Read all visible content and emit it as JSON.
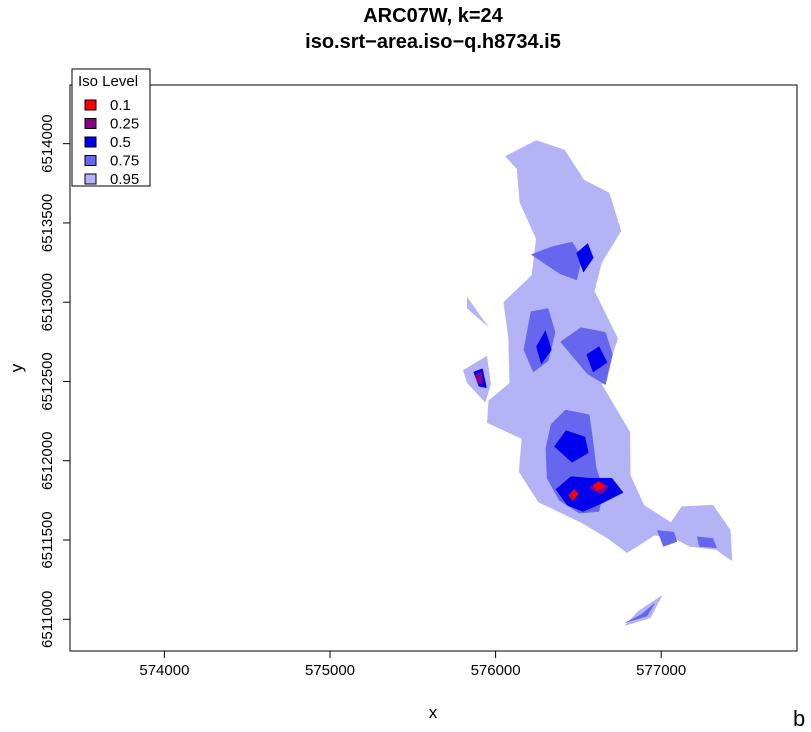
{
  "chart_data": {
    "type": "area",
    "title": "ARC07W, k=24",
    "subtitle": "iso.srt−area.iso−q.h8734.i5",
    "xlabel": "x",
    "ylabel": "y",
    "xlim": [
      573430,
      577820
    ],
    "ylim": [
      6510800,
      6514370
    ],
    "x_ticks": [
      574000,
      575000,
      576000,
      577000
    ],
    "y_ticks": [
      6511000,
      6511500,
      6512000,
      6512500,
      6513000,
      6513500,
      6514000
    ],
    "y_tick_labels": [
      "6511000",
      "6511500",
      "6512000",
      "6512500",
      "6513000",
      "6513500",
      "6514000"
    ],
    "x_tick_labels": [
      "574000",
      "575000",
      "576000",
      "577000"
    ],
    "grid": false,
    "legend": {
      "title": "Iso Level",
      "position": "top-left",
      "entries": [
        {
          "label": "0.1",
          "color": "#ff0000"
        },
        {
          "label": "0.25",
          "color": "#8b008b"
        },
        {
          "label": "0.5",
          "color": "#0000ee"
        },
        {
          "label": "0.75",
          "color": "#6666ee"
        },
        {
          "label": "0.95",
          "color": "#b3b3f5"
        }
      ]
    },
    "series": [
      {
        "name": "0.95",
        "color": "#b3b3f5",
        "polygons": [
          [
            [
              576059,
              6513920
            ],
            [
              576245,
              6514020
            ],
            [
              576416,
              6513960
            ],
            [
              576534,
              6513770
            ],
            [
              576685,
              6513690
            ],
            [
              576757,
              6513450
            ],
            [
              576640,
              6513250
            ],
            [
              576596,
              6513070
            ],
            [
              576738,
              6512770
            ],
            [
              576641,
              6512480
            ],
            [
              576811,
              6512180
            ],
            [
              576813,
              6511910
            ],
            [
              576895,
              6511720
            ],
            [
              577059,
              6511610
            ],
            [
              577124,
              6511710
            ],
            [
              577313,
              6511720
            ],
            [
              577418,
              6511560
            ],
            [
              577427,
              6511370
            ],
            [
              577330,
              6511440
            ],
            [
              577172,
              6511460
            ],
            [
              577062,
              6511520
            ],
            [
              576959,
              6511530
            ],
            [
              576794,
              6511420
            ],
            [
              576679,
              6511510
            ],
            [
              576518,
              6511610
            ],
            [
              576259,
              6511740
            ],
            [
              576142,
              6511930
            ],
            [
              576159,
              6512140
            ],
            [
              575949,
              6512240
            ],
            [
              575959,
              6512380
            ],
            [
              576085,
              6512490
            ],
            [
              576078,
              6512780
            ],
            [
              576049,
              6513000
            ],
            [
              576219,
              6513170
            ],
            [
              576246,
              6513400
            ],
            [
              576146,
              6513630
            ],
            [
              576130,
              6513840
            ],
            [
              576059,
              6513920
            ]
          ],
          [
            [
              576124,
              6512880
            ],
            [
              576202,
              6512990
            ],
            [
              576344,
              6512880
            ],
            [
              576419,
              6512600
            ],
            [
              576444,
              6512330
            ],
            [
              576345,
              6512270
            ],
            [
              576223,
              6512350
            ],
            [
              576200,
              6512540
            ],
            [
              576119,
              6512700
            ],
            [
              576124,
              6512880
            ]
          ],
          [
            [
              575805,
              6512570
            ],
            [
              575947,
              6512660
            ],
            [
              575970,
              6512480
            ],
            [
              575937,
              6512370
            ],
            [
              575830,
              6512490
            ],
            [
              575805,
              6512570
            ]
          ],
          [
            [
              575829,
              6512960
            ],
            [
              575952,
              6512850
            ],
            [
              575902,
              6512920
            ],
            [
              575829,
              6513030
            ],
            [
              575829,
              6512960
            ]
          ],
          [
            [
              576780,
              6510960
            ],
            [
              576935,
              6511010
            ],
            [
              577005,
              6511150
            ],
            [
              576860,
              6511050
            ],
            [
              576780,
              6510960
            ]
          ]
        ]
      },
      {
        "name": "0.75",
        "color": "#6666ee",
        "polygons": [
          [
            [
              576216,
              6513300
            ],
            [
              576341,
              6513350
            ],
            [
              576462,
              6513380
            ],
            [
              576522,
              6513280
            ],
            [
              576490,
              6513140
            ],
            [
              576388,
              6513180
            ],
            [
              576216,
              6513300
            ]
          ],
          [
            [
              576214,
              6512940
            ],
            [
              576317,
              6512960
            ],
            [
              576359,
              6512810
            ],
            [
              576317,
              6512630
            ],
            [
              576228,
              6512560
            ],
            [
              576170,
              6512700
            ],
            [
              576214,
              6512940
            ]
          ],
          [
            [
              576392,
              6512750
            ],
            [
              576515,
              6512840
            ],
            [
              576663,
              6512810
            ],
            [
              576706,
              6512670
            ],
            [
              576663,
              6512480
            ],
            [
              576552,
              6512550
            ],
            [
              576392,
              6512750
            ]
          ],
          [
            [
              576335,
              6512230
            ],
            [
              576422,
              6512320
            ],
            [
              576565,
              6512290
            ],
            [
              576587,
              6512130
            ],
            [
              576606,
              6511960
            ],
            [
              576651,
              6511810
            ],
            [
              576624,
              6511680
            ],
            [
              576506,
              6511670
            ],
            [
              576385,
              6511750
            ],
            [
              576311,
              6511890
            ],
            [
              576304,
              6512080
            ],
            [
              576335,
              6512230
            ]
          ],
          [
            [
              576977,
              6511560
            ],
            [
              577076,
              6511550
            ],
            [
              577095,
              6511490
            ],
            [
              577013,
              6511460
            ],
            [
              576977,
              6511560
            ]
          ],
          [
            [
              577218,
              6511520
            ],
            [
              577312,
              6511510
            ],
            [
              577335,
              6511450
            ],
            [
              577230,
              6511460
            ],
            [
              577218,
              6511520
            ]
          ],
          [
            [
              576786,
              6510980
            ],
            [
              576880,
              6511030
            ],
            [
              576960,
              6511100
            ],
            [
              576914,
              6511020
            ],
            [
              576786,
              6510980
            ]
          ]
        ]
      },
      {
        "name": "0.5",
        "color": "#0000ee",
        "polygons": [
          [
            [
              576489,
              6513310
            ],
            [
              576556,
              6513370
            ],
            [
              576590,
              6513280
            ],
            [
              576531,
              6513190
            ],
            [
              576489,
              6513310
            ]
          ],
          [
            [
              576247,
              6512720
            ],
            [
              576301,
              6512820
            ],
            [
              576337,
              6512700
            ],
            [
              576276,
              6512610
            ],
            [
              576247,
              6512720
            ]
          ],
          [
            [
              576550,
              6512670
            ],
            [
              576625,
              6512720
            ],
            [
              576673,
              6512620
            ],
            [
              576589,
              6512560
            ],
            [
              576550,
              6512670
            ]
          ],
          [
            [
              576355,
              6512090
            ],
            [
              576425,
              6512190
            ],
            [
              576539,
              6512150
            ],
            [
              576560,
              6512050
            ],
            [
              576461,
              6511990
            ],
            [
              576355,
              6512090
            ]
          ],
          [
            [
              576364,
              6511820
            ],
            [
              576455,
              6511900
            ],
            [
              576567,
              6511890
            ],
            [
              576702,
              6511890
            ],
            [
              576770,
              6511800
            ],
            [
              576637,
              6511730
            ],
            [
              576529,
              6511680
            ],
            [
              576432,
              6511720
            ],
            [
              576364,
              6511820
            ]
          ],
          [
            [
              575867,
              6512560
            ],
            [
              575921,
              6512580
            ],
            [
              575945,
              6512460
            ],
            [
              575899,
              6512470
            ],
            [
              575867,
              6512560
            ]
          ]
        ]
      },
      {
        "name": "0.25",
        "color": "#8b008b",
        "polygons": [
          [
            [
              575878,
              6512540
            ],
            [
              575914,
              6512560
            ],
            [
              575921,
              6512480
            ],
            [
              575893,
              6512490
            ],
            [
              575878,
              6512540
            ]
          ],
          [
            [
              576565,
              6511830
            ],
            [
              576620,
              6511870
            ],
            [
              576680,
              6511840
            ],
            [
              576641,
              6511790
            ],
            [
              576565,
              6511830
            ]
          ]
        ]
      },
      {
        "name": "0.1",
        "color": "#ff0000",
        "polygons": [
          [
            [
              576440,
              6511780
            ],
            [
              576474,
              6511820
            ],
            [
              576500,
              6511790
            ],
            [
              576466,
              6511750
            ],
            [
              576440,
              6511780
            ]
          ],
          [
            [
              576588,
              6511840
            ],
            [
              576625,
              6511870
            ],
            [
              576658,
              6511840
            ],
            [
              576612,
              6511810
            ],
            [
              576588,
              6511840
            ]
          ]
        ]
      }
    ]
  },
  "figure_tag": "b"
}
